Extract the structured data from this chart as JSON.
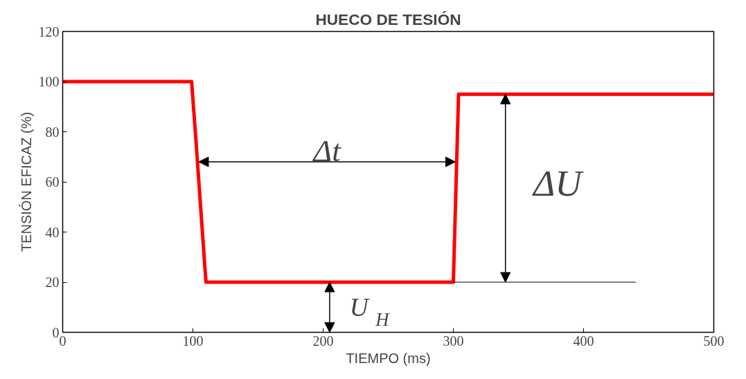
{
  "chart_data": {
    "type": "line",
    "title": "HUECO DE TESIÓN",
    "xlabel": "TIEMPO (ms)",
    "ylabel": "TENSIÓN EFICAZ (%)",
    "x": [
      0,
      99,
      102,
      110,
      300,
      304,
      500
    ],
    "series": [
      {
        "color": "#ff0000",
        "values": [
          100,
          100,
          79,
          20,
          20,
          95,
          95
        ]
      },
      {
        "color": "#000000",
        "x": [
          300,
          440
        ],
        "values": [
          20,
          20
        ]
      }
    ],
    "xlim": [
      0,
      500
    ],
    "xticks": [
      0,
      100,
      200,
      300,
      400,
      500
    ],
    "ylim": [
      0,
      120
    ],
    "yticks": [
      0,
      20,
      40,
      60,
      80,
      100,
      120
    ],
    "grid": false,
    "marker": "none",
    "line_style": "solid",
    "annotations": [
      "Δt",
      "ΔU",
      "U$_{H}$"
    ]
  }
}
